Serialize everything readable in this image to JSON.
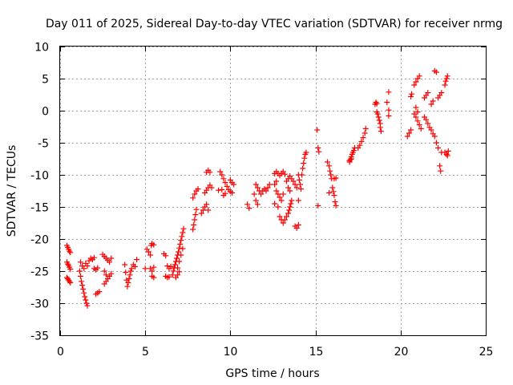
{
  "chart_data": {
    "type": "scatter",
    "title": "Day 011 of 2025, Sidereal Day-to-day VTEC variation (SDTVAR) for receiver nrmg",
    "xlabel": "GPS time / hours",
    "ylabel": "SDTVAR / TECUs",
    "xlim": [
      0,
      25
    ],
    "ylim": [
      -35,
      10
    ],
    "xticks": [
      "0",
      "5",
      "10",
      "15",
      "20",
      "25"
    ],
    "yticks": [
      "10",
      "5",
      "0",
      "-5",
      "-10",
      "-15",
      "-20",
      "-25",
      "-30",
      "-35"
    ],
    "grid": true,
    "marker": "plus",
    "color": "#ff0000",
    "series": [
      {
        "name": "SDTVAR",
        "points": [
          [
            0.4,
            -21.0
          ],
          [
            0.45,
            -21.3
          ],
          [
            0.5,
            -21.6
          ],
          [
            0.55,
            -21.9
          ],
          [
            0.6,
            -22.1
          ],
          [
            0.4,
            -23.6
          ],
          [
            0.45,
            -23.9
          ],
          [
            0.5,
            -24.1
          ],
          [
            0.55,
            -24.4
          ],
          [
            0.6,
            -24.7
          ],
          [
            0.4,
            -26.0
          ],
          [
            0.45,
            -26.2
          ],
          [
            0.5,
            -26.4
          ],
          [
            0.55,
            -26.6
          ],
          [
            0.6,
            -26.8
          ],
          [
            1.15,
            -25.0
          ],
          [
            1.2,
            -25.8
          ],
          [
            1.25,
            -26.6
          ],
          [
            1.3,
            -27.2
          ],
          [
            1.35,
            -27.8
          ],
          [
            1.4,
            -28.4
          ],
          [
            1.45,
            -29.0
          ],
          [
            1.5,
            -29.5
          ],
          [
            1.55,
            -30.0
          ],
          [
            1.6,
            -30.4
          ],
          [
            1.2,
            -23.6
          ],
          [
            1.3,
            -24.2
          ],
          [
            1.4,
            -24.6
          ],
          [
            1.5,
            -23.8
          ],
          [
            1.6,
            -24.2
          ],
          [
            1.7,
            -23.4
          ],
          [
            1.8,
            -23.0
          ],
          [
            1.9,
            -23.2
          ],
          [
            2.0,
            -22.9
          ],
          [
            2.0,
            -24.6
          ],
          [
            2.1,
            -24.8
          ],
          [
            2.2,
            -24.5
          ],
          [
            2.1,
            -28.6
          ],
          [
            2.2,
            -28.4
          ],
          [
            2.3,
            -28.2
          ],
          [
            2.5,
            -22.4
          ],
          [
            2.6,
            -22.7
          ],
          [
            2.7,
            -23.0
          ],
          [
            2.8,
            -23.3
          ],
          [
            2.9,
            -23.6
          ],
          [
            3.0,
            -23.0
          ],
          [
            2.6,
            -25.0
          ],
          [
            2.7,
            -25.6
          ],
          [
            2.6,
            -27.0
          ],
          [
            2.7,
            -26.6
          ],
          [
            2.8,
            -26.2
          ],
          [
            2.9,
            -25.8
          ],
          [
            3.0,
            -25.4
          ],
          [
            3.8,
            -24.0
          ],
          [
            3.85,
            -25.2
          ],
          [
            3.9,
            -26.4
          ],
          [
            3.95,
            -27.4
          ],
          [
            4.0,
            -26.8
          ],
          [
            4.05,
            -26.2
          ],
          [
            4.1,
            -25.6
          ],
          [
            4.15,
            -25.0
          ],
          [
            4.2,
            -24.6
          ],
          [
            4.3,
            -24.0
          ],
          [
            4.4,
            -24.3
          ],
          [
            4.5,
            -23.2
          ],
          [
            5.0,
            -24.6
          ],
          [
            5.1,
            -21.6
          ],
          [
            5.2,
            -22.0
          ],
          [
            5.3,
            -22.5
          ],
          [
            5.35,
            -21.0
          ],
          [
            5.4,
            -20.7
          ],
          [
            5.5,
            -20.9
          ],
          [
            5.3,
            -24.6
          ],
          [
            5.4,
            -25.0
          ],
          [
            5.5,
            -24.4
          ],
          [
            5.4,
            -25.8
          ],
          [
            5.5,
            -26.0
          ],
          [
            6.1,
            -22.3
          ],
          [
            6.2,
            -22.6
          ],
          [
            6.3,
            -24.2
          ],
          [
            6.4,
            -24.6
          ],
          [
            6.5,
            -24.3
          ],
          [
            6.2,
            -25.8
          ],
          [
            6.3,
            -26.0
          ],
          [
            6.4,
            -25.9
          ],
          [
            6.6,
            -25.6
          ],
          [
            6.65,
            -25.0
          ],
          [
            6.7,
            -24.5
          ],
          [
            6.75,
            -24.0
          ],
          [
            6.8,
            -23.5
          ],
          [
            6.85,
            -23.0
          ],
          [
            6.9,
            -22.5
          ],
          [
            6.95,
            -22.0
          ],
          [
            7.0,
            -21.4
          ],
          [
            7.05,
            -20.8
          ],
          [
            7.1,
            -20.2
          ],
          [
            7.15,
            -19.6
          ],
          [
            7.2,
            -19.0
          ],
          [
            7.25,
            -18.4
          ],
          [
            6.9,
            -24.5
          ],
          [
            7.0,
            -23.5
          ],
          [
            7.1,
            -22.5
          ],
          [
            7.2,
            -21.5
          ],
          [
            6.8,
            -26.0
          ],
          [
            6.9,
            -25.6
          ],
          [
            7.0,
            -25.1
          ],
          [
            7.8,
            -18.5
          ],
          [
            7.85,
            -17.8
          ],
          [
            7.9,
            -17.0
          ],
          [
            7.95,
            -16.2
          ],
          [
            8.0,
            -15.4
          ],
          [
            7.8,
            -13.6
          ],
          [
            7.9,
            -13.0
          ],
          [
            8.0,
            -12.5
          ],
          [
            8.1,
            -12.2
          ],
          [
            8.3,
            -16.0
          ],
          [
            8.4,
            -15.5
          ],
          [
            8.5,
            -15.0
          ],
          [
            8.6,
            -14.6
          ],
          [
            8.7,
            -15.5
          ],
          [
            8.5,
            -12.8
          ],
          [
            8.6,
            -12.4
          ],
          [
            8.7,
            -12.0
          ],
          [
            8.8,
            -11.6
          ],
          [
            8.9,
            -12.0
          ],
          [
            8.6,
            -9.6
          ],
          [
            8.7,
            -9.3
          ],
          [
            8.8,
            -9.6
          ],
          [
            9.4,
            -9.5
          ],
          [
            9.5,
            -10.0
          ],
          [
            9.6,
            -10.6
          ],
          [
            9.7,
            -11.2
          ],
          [
            9.8,
            -11.8
          ],
          [
            9.9,
            -12.3
          ],
          [
            10.0,
            -12.6
          ],
          [
            10.1,
            -12.8
          ],
          [
            9.3,
            -12.4
          ],
          [
            9.5,
            -12.3
          ],
          [
            9.6,
            -13.2
          ],
          [
            9.7,
            -12.9
          ],
          [
            10.0,
            -10.8
          ],
          [
            10.1,
            -11.2
          ],
          [
            10.2,
            -11.5
          ],
          [
            11.0,
            -14.6
          ],
          [
            11.1,
            -15.2
          ],
          [
            11.4,
            -13.0
          ],
          [
            11.5,
            -14.0
          ],
          [
            11.6,
            -14.6
          ],
          [
            11.5,
            -11.5
          ],
          [
            11.6,
            -12.0
          ],
          [
            11.7,
            -12.5
          ],
          [
            11.8,
            -13.0
          ],
          [
            11.9,
            -12.5
          ],
          [
            12.0,
            -12.2
          ],
          [
            12.1,
            -12.5
          ],
          [
            12.2,
            -12.0
          ],
          [
            12.3,
            -11.5
          ],
          [
            12.6,
            -9.8
          ],
          [
            12.7,
            -9.5
          ],
          [
            12.8,
            -9.8
          ],
          [
            12.9,
            -10.1
          ],
          [
            13.0,
            -9.8
          ],
          [
            13.1,
            -9.5
          ],
          [
            13.2,
            -9.9
          ],
          [
            12.7,
            -12.5
          ],
          [
            12.8,
            -13.0
          ],
          [
            12.9,
            -13.5
          ],
          [
            13.0,
            -14.0
          ],
          [
            13.1,
            -13.0
          ],
          [
            12.6,
            -14.5
          ],
          [
            12.8,
            -15.0
          ],
          [
            12.6,
            -11.5
          ],
          [
            12.7,
            -11.0
          ],
          [
            12.9,
            -16.5
          ],
          [
            13.0,
            -17.0
          ],
          [
            13.1,
            -17.5
          ],
          [
            13.2,
            -17.0
          ],
          [
            13.3,
            -16.5
          ],
          [
            13.4,
            -16.0
          ],
          [
            13.45,
            -15.5
          ],
          [
            13.5,
            -15.0
          ],
          [
            13.55,
            -14.5
          ],
          [
            13.6,
            -14.0
          ],
          [
            13.5,
            -12.5
          ],
          [
            13.4,
            -12.0
          ],
          [
            13.3,
            -11.0
          ],
          [
            13.4,
            -10.6
          ],
          [
            13.5,
            -10.2
          ],
          [
            13.6,
            -10.6
          ],
          [
            13.7,
            -11.0
          ],
          [
            13.8,
            -11.5
          ],
          [
            13.9,
            -12.0
          ],
          [
            13.8,
            -18.0
          ],
          [
            13.9,
            -18.3
          ],
          [
            14.0,
            -17.8
          ],
          [
            14.0,
            -10.0
          ],
          [
            14.05,
            -10.8
          ],
          [
            14.1,
            -11.5
          ],
          [
            14.15,
            -12.2
          ],
          [
            14.0,
            -14.0
          ],
          [
            14.2,
            -10.0
          ],
          [
            14.25,
            -9.0
          ],
          [
            14.3,
            -8.2
          ],
          [
            14.35,
            -7.4
          ],
          [
            14.4,
            -6.8
          ],
          [
            14.45,
            -6.5
          ],
          [
            15.1,
            -3.0
          ],
          [
            15.15,
            -5.8
          ],
          [
            15.2,
            -6.4
          ],
          [
            15.15,
            -14.8
          ],
          [
            15.7,
            -8.0
          ],
          [
            15.8,
            -8.6
          ],
          [
            15.85,
            -9.4
          ],
          [
            15.9,
            -10.0
          ],
          [
            15.95,
            -10.6
          ],
          [
            15.8,
            -12.8
          ],
          [
            16.0,
            -12.0
          ],
          [
            16.05,
            -12.6
          ],
          [
            16.1,
            -13.2
          ],
          [
            16.15,
            -14.2
          ],
          [
            16.2,
            -14.8
          ],
          [
            16.1,
            -10.6
          ],
          [
            16.2,
            -10.5
          ],
          [
            17.0,
            -8.0
          ],
          [
            17.05,
            -7.6
          ],
          [
            17.1,
            -7.2
          ],
          [
            17.15,
            -6.8
          ],
          [
            17.2,
            -6.5
          ],
          [
            17.25,
            -6.2
          ],
          [
            17.3,
            -5.8
          ],
          [
            17.0,
            -7.8
          ],
          [
            17.1,
            -7.5
          ],
          [
            17.5,
            -5.8
          ],
          [
            17.6,
            -5.4
          ],
          [
            17.7,
            -4.8
          ],
          [
            17.8,
            -4.2
          ],
          [
            17.9,
            -3.5
          ],
          [
            17.95,
            -2.8
          ],
          [
            18.5,
            1.0
          ],
          [
            18.55,
            1.3
          ],
          [
            18.6,
            1.1
          ],
          [
            18.6,
            -0.2
          ],
          [
            18.65,
            -0.5
          ],
          [
            18.7,
            -1.0
          ],
          [
            18.75,
            -1.5
          ],
          [
            18.8,
            -2.0
          ],
          [
            18.8,
            -2.6
          ],
          [
            18.85,
            -3.2
          ],
          [
            19.2,
            1.3
          ],
          [
            19.3,
            2.9
          ],
          [
            19.3,
            0.1
          ],
          [
            19.3,
            -0.8
          ],
          [
            20.4,
            -4.0
          ],
          [
            20.5,
            -3.5
          ],
          [
            20.6,
            -3.0
          ],
          [
            20.6,
            2.2
          ],
          [
            20.65,
            2.6
          ],
          [
            20.8,
            -0.5
          ],
          [
            20.9,
            -1.0
          ],
          [
            21.0,
            -1.6
          ],
          [
            21.1,
            -2.2
          ],
          [
            21.2,
            -2.8
          ],
          [
            21.0,
            -0.2
          ],
          [
            20.9,
            0.5
          ],
          [
            20.8,
            4.0
          ],
          [
            20.9,
            4.5
          ],
          [
            21.0,
            5.0
          ],
          [
            21.1,
            5.4
          ],
          [
            21.4,
            -1.0
          ],
          [
            21.5,
            -1.4
          ],
          [
            21.6,
            -2.0
          ],
          [
            21.7,
            -2.6
          ],
          [
            21.8,
            -3.0
          ],
          [
            21.9,
            -3.6
          ],
          [
            22.0,
            -4.0
          ],
          [
            22.1,
            -5.0
          ],
          [
            22.2,
            -5.8
          ],
          [
            21.4,
            2.0
          ],
          [
            21.5,
            2.4
          ],
          [
            21.6,
            2.8
          ],
          [
            21.8,
            1.0
          ],
          [
            21.9,
            1.5
          ],
          [
            22.0,
            6.2
          ],
          [
            22.1,
            6.0
          ],
          [
            22.2,
            2.0
          ],
          [
            22.3,
            2.4
          ],
          [
            22.4,
            2.8
          ],
          [
            22.3,
            -8.6
          ],
          [
            22.35,
            -9.4
          ],
          [
            22.4,
            -6.5
          ],
          [
            22.6,
            4.0
          ],
          [
            22.65,
            4.6
          ],
          [
            22.7,
            5.0
          ],
          [
            22.75,
            5.4
          ],
          [
            22.6,
            -6.5
          ],
          [
            22.7,
            -6.8
          ],
          [
            22.75,
            -7.0
          ],
          [
            22.8,
            -6.3
          ]
        ]
      }
    ]
  }
}
